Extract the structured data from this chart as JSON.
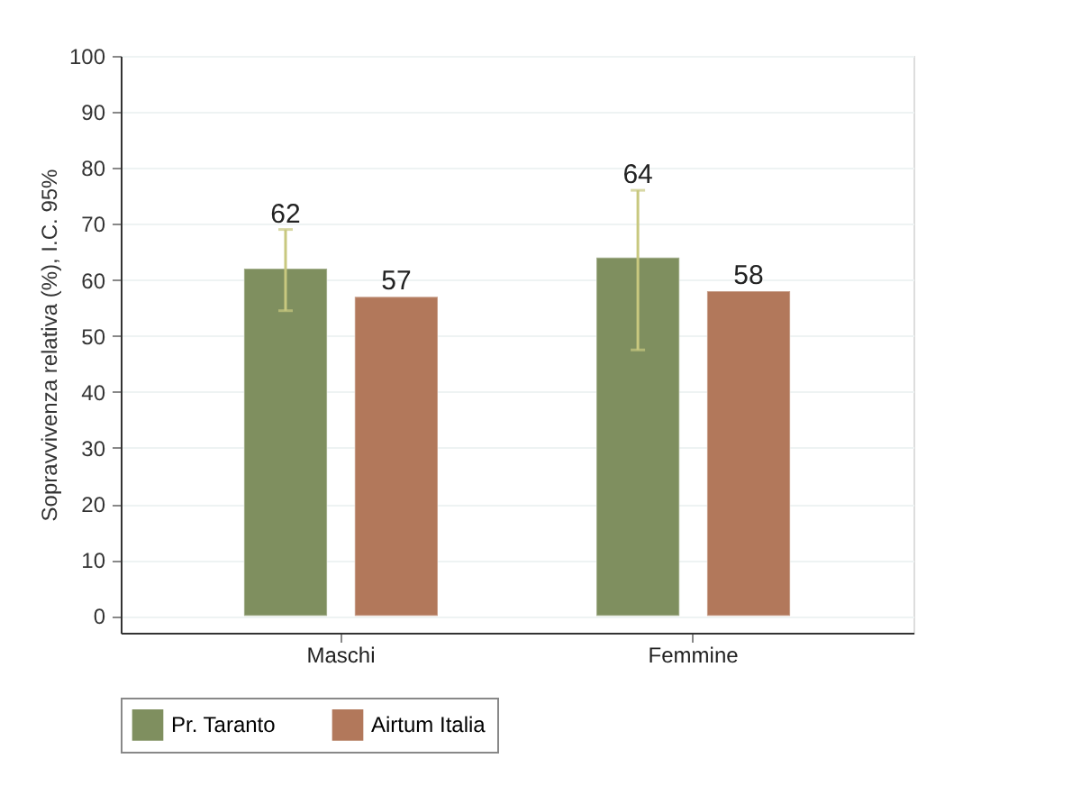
{
  "chart_data": {
    "type": "bar",
    "ylabel": "Sopravvivenza relativa (%), I.C. 95%",
    "categories": [
      "Maschi",
      "Femmine"
    ],
    "series": [
      {
        "name": "Pr. Taranto",
        "color": "#7f8f5f",
        "values": [
          62,
          64
        ],
        "errors": [
          [
            54.5,
            69
          ],
          [
            47.5,
            76
          ]
        ]
      },
      {
        "name": "Airtum Italia",
        "color": "#b2785b",
        "values": [
          57,
          58
        ]
      }
    ],
    "ylim": [
      -3,
      100
    ],
    "yticks": [
      0,
      10,
      20,
      30,
      40,
      50,
      60,
      70,
      80,
      90,
      100
    ],
    "grid": "y",
    "legend": "bottom",
    "data_labels": true
  }
}
